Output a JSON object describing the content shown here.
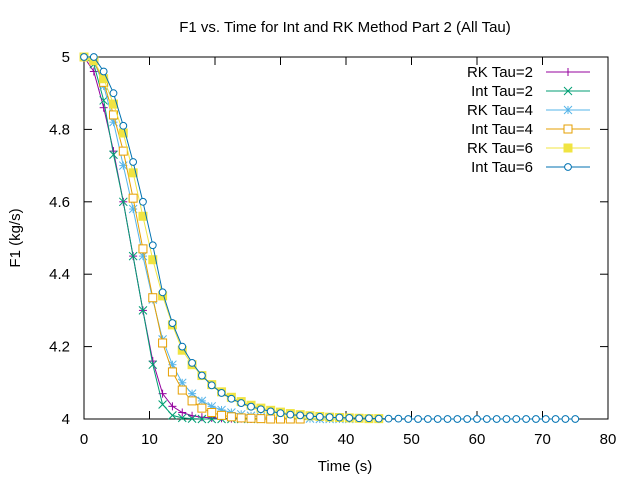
{
  "chart_data": {
    "type": "line",
    "title": "F1 vs. Time for Int and RK Method Part 2 (All Tau)",
    "xlabel": "Time (s)",
    "ylabel": "F1 (kg/s)",
    "xlim": [
      0,
      80
    ],
    "ylim": [
      4,
      5
    ],
    "xticks": [
      0,
      10,
      20,
      30,
      40,
      50,
      60,
      70,
      80
    ],
    "yticks": [
      4,
      4.2,
      4.4,
      4.6,
      4.8,
      5
    ],
    "ytick_labels": [
      "4",
      "4.2",
      "4.4",
      "4.6",
      "4.8",
      "5"
    ],
    "grid": false,
    "legend_position": "top-right",
    "series": [
      {
        "name": "RK Tau=2",
        "color": "#94009e",
        "marker": "plus",
        "x": [
          0,
          1.5,
          3,
          4.5,
          6,
          7.5,
          9,
          10.5,
          12,
          13.5,
          15,
          16.5,
          18,
          19.5,
          21,
          22.5,
          24,
          25.5,
          27,
          28.5,
          30
        ],
        "y": [
          5,
          4.96,
          4.86,
          4.74,
          4.6,
          4.45,
          4.3,
          4.16,
          4.07,
          4.035,
          4.018,
          4.009,
          4.005,
          4.003,
          4.002,
          4.001,
          4.001,
          4.0,
          4.0,
          4.0,
          4.0
        ]
      },
      {
        "name": "Int Tau=2",
        "color": "#009e73",
        "marker": "x",
        "x": [
          0,
          1.5,
          3,
          4.5,
          6,
          7.5,
          9,
          10.5,
          12,
          13.5,
          15,
          16.5,
          18,
          19.5,
          21,
          22.5,
          24,
          25.5,
          27
        ],
        "y": [
          5,
          4.98,
          4.88,
          4.73,
          4.6,
          4.45,
          4.3,
          4.15,
          4.04,
          4.01,
          4.003,
          4.001,
          4.0,
          4.0,
          4.0,
          4.0,
          4.0,
          4.0,
          4.0
        ]
      },
      {
        "name": "RK Tau=4",
        "color": "#56b4e9",
        "marker": "star",
        "x": [
          0,
          1.5,
          3,
          4.5,
          6,
          7.5,
          9,
          10.5,
          12,
          13.5,
          15,
          16.5,
          18,
          19.5,
          21,
          22.5,
          24,
          25.5,
          27,
          28.5,
          30,
          31.5,
          33,
          34.5,
          36,
          37.5,
          39,
          40.5
        ],
        "y": [
          5,
          4.99,
          4.92,
          4.82,
          4.7,
          4.58,
          4.45,
          4.33,
          4.22,
          4.15,
          4.1,
          4.07,
          4.05,
          4.035,
          4.025,
          4.018,
          4.013,
          4.009,
          4.006,
          4.004,
          4.003,
          4.002,
          4.001,
          4.001,
          4.0,
          4.0,
          4.0,
          4.0
        ]
      },
      {
        "name": "Int Tau=4",
        "color": "#e69f00",
        "marker": "square-open",
        "x": [
          0,
          1.5,
          3,
          4.5,
          6,
          7.5,
          9,
          10.5,
          12,
          13.5,
          15,
          16.5,
          18,
          19.5,
          21,
          22.5,
          24,
          25.5,
          27,
          28.5,
          30,
          31.5,
          33
        ],
        "y": [
          5,
          4.99,
          4.93,
          4.84,
          4.74,
          4.61,
          4.47,
          4.335,
          4.21,
          4.13,
          4.08,
          4.05,
          4.03,
          4.018,
          4.01,
          4.006,
          4.003,
          4.002,
          4.001,
          4.0,
          4.0,
          4.0,
          4.0
        ]
      },
      {
        "name": "RK Tau=6",
        "color": "#f0e442",
        "marker": "square-filled",
        "x": [
          0,
          1.5,
          3,
          4.5,
          6,
          7.5,
          9,
          10.5,
          12,
          13.5,
          15,
          16.5,
          18,
          19.5,
          21,
          22.5,
          24,
          25.5,
          27,
          28.5,
          30,
          31.5,
          33,
          34.5,
          36,
          37.5,
          39,
          40.5,
          42,
          43.5,
          45
        ],
        "y": [
          5,
          4.99,
          4.94,
          4.87,
          4.79,
          4.68,
          4.56,
          4.44,
          4.34,
          4.26,
          4.19,
          4.15,
          4.12,
          4.095,
          4.075,
          4.06,
          4.048,
          4.038,
          4.03,
          4.024,
          4.019,
          4.015,
          4.012,
          4.009,
          4.007,
          4.005,
          4.004,
          4.003,
          4.002,
          4.001,
          4.001
        ]
      },
      {
        "name": "Int Tau=6",
        "color": "#0072b2",
        "marker": "circle-open",
        "x": [
          0,
          1.5,
          3,
          4.5,
          6,
          7.5,
          9,
          10.5,
          12,
          13.5,
          15,
          16.5,
          18,
          19.5,
          21,
          22.5,
          24,
          25.5,
          27,
          28.5,
          30,
          31.5,
          33,
          34.5,
          36,
          37.5,
          39,
          40.5,
          42,
          43.5,
          45,
          46.5,
          48,
          49.5,
          51,
          52.5,
          54,
          55.5,
          57,
          58.5,
          60,
          61.5,
          63,
          64.5,
          66,
          67.5,
          69,
          70.5,
          72,
          73.5,
          75
        ],
        "y": [
          5,
          5.0,
          4.96,
          4.9,
          4.81,
          4.71,
          4.6,
          4.48,
          4.35,
          4.265,
          4.2,
          4.155,
          4.12,
          4.093,
          4.072,
          4.056,
          4.044,
          4.034,
          4.027,
          4.021,
          4.016,
          4.012,
          4.01,
          4.008,
          4.006,
          4.005,
          4.004,
          4.003,
          4.002,
          4.002,
          4.001,
          4.001,
          4.001,
          4.0,
          4.0,
          4.0,
          4.0,
          4.0,
          4.0,
          4.0,
          4.0,
          4.0,
          4.0,
          4.0,
          4.0,
          4.0,
          4.0,
          4.0,
          4.0,
          4.0,
          4.0
        ]
      }
    ]
  }
}
